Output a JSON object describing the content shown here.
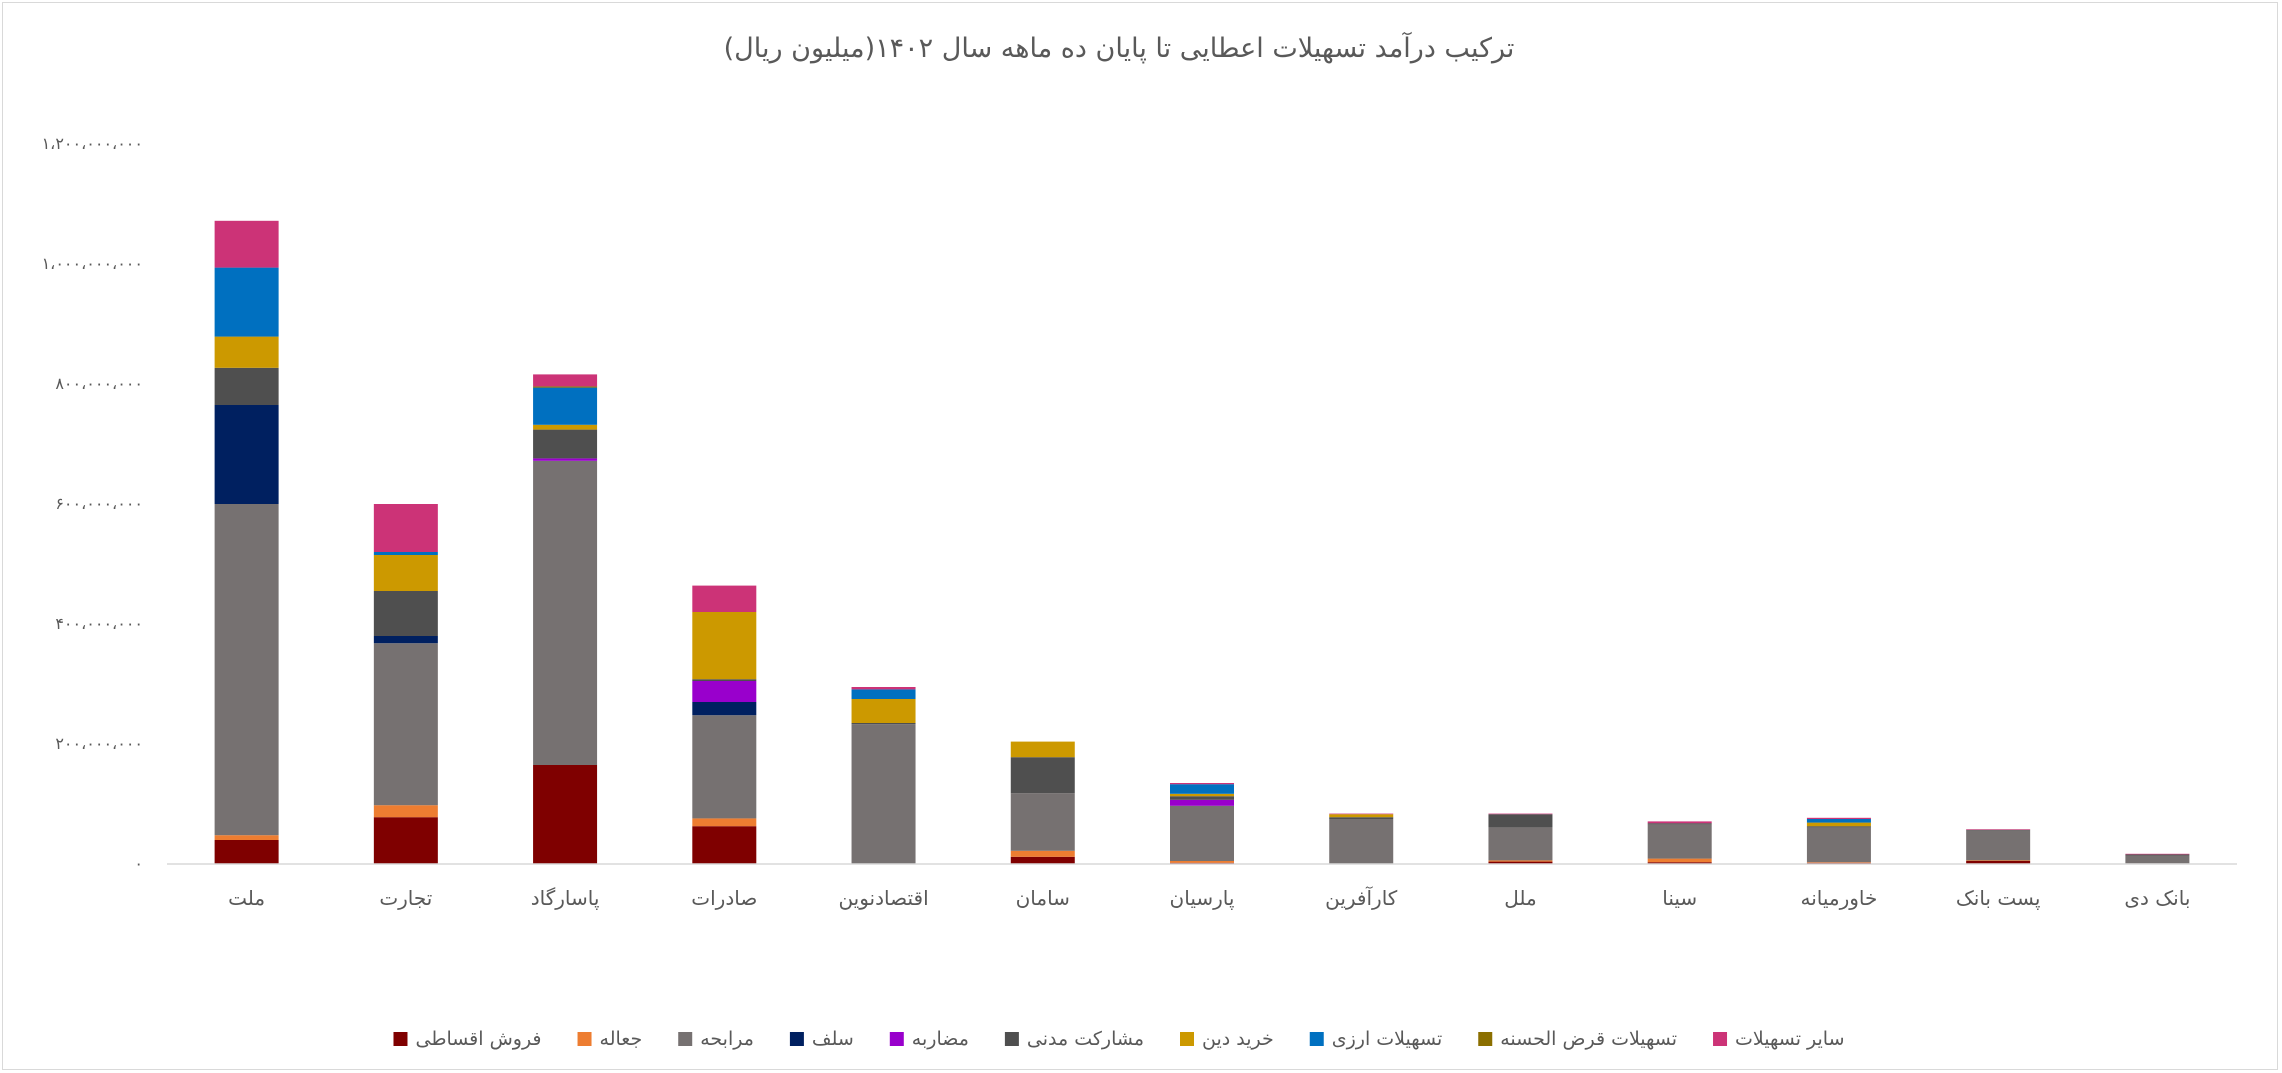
{
  "chart_data": {
    "type": "bar",
    "stacked": true,
    "title": "ترکیب درآمد تسهیلات اعطایی تا پایان ده ماهه سال ۱۴۰۲(میلیون ریال)",
    "xlabel": "",
    "ylabel": "",
    "ylim": [
      0,
      1200000000
    ],
    "yticks": [
      0,
      200000000,
      400000000,
      600000000,
      800000000,
      1000000000,
      1200000000
    ],
    "ytick_labels": [
      "۰",
      "۲۰۰،۰۰۰،۰۰۰",
      "۴۰۰،۰۰۰،۰۰۰",
      "۶۰۰،۰۰۰،۰۰۰",
      "۸۰۰،۰۰۰،۰۰۰",
      "۱،۰۰۰،۰۰۰،۰۰۰",
      "۱،۲۰۰،۰۰۰،۰۰۰"
    ],
    "grid": false,
    "legend_position": "bottom",
    "categories": [
      "ملت",
      "تجارت",
      "پاسارگاد",
      "صادرات",
      "اقتصادنوین",
      "سامان",
      "پارسیان",
      "کارآفرین",
      "ملل",
      "سینا",
      "خاورمیانه",
      "پست بانک",
      "بانک دی"
    ],
    "series": [
      {
        "name": "فروش اقساطی",
        "color": "#7F0000",
        "values": [
          40000000,
          78000000,
          165000000,
          63000000,
          0,
          12000000,
          2000000,
          0,
          4000000,
          3000000,
          2000000,
          5000000,
          1000000
        ]
      },
      {
        "name": "جعاله",
        "color": "#ED7D31",
        "values": [
          8000000,
          20000000,
          0,
          13000000,
          0,
          10000000,
          3000000,
          0,
          2000000,
          6000000,
          1000000,
          1000000,
          0
        ]
      },
      {
        "name": "مرابحه",
        "color": "#767171",
        "values": [
          552000000,
          270000000,
          507000000,
          172000000,
          233000000,
          96000000,
          92000000,
          75000000,
          55000000,
          57000000,
          58000000,
          50000000,
          13000000
        ]
      },
      {
        "name": "سلف",
        "color": "#002060",
        "values": [
          165000000,
          12000000,
          0,
          22000000,
          0,
          0,
          0,
          0,
          0,
          0,
          0,
          0,
          0
        ]
      },
      {
        "name": "مضاربه",
        "color": "#9900CC",
        "values": [
          0,
          0,
          4000000,
          35000000,
          0,
          0,
          10000000,
          0,
          0,
          0,
          0,
          0,
          0
        ]
      },
      {
        "name": "مشارکت مدنی",
        "color": "#4F4F4F",
        "values": [
          62000000,
          75000000,
          48000000,
          3000000,
          2000000,
          60000000,
          6000000,
          3000000,
          22000000,
          2000000,
          2000000,
          1000000,
          2000000
        ]
      },
      {
        "name": "خرید دین",
        "color": "#CC9900",
        "values": [
          52000000,
          60000000,
          8000000,
          112000000,
          40000000,
          26000000,
          4000000,
          5000000,
          0,
          0,
          6000000,
          0,
          0
        ]
      },
      {
        "name": "تسهیلات ارزی",
        "color": "#0070C0",
        "values": [
          115000000,
          5000000,
          62000000,
          0,
          16000000,
          0,
          16000000,
          0,
          0,
          0,
          6000000,
          0,
          0
        ]
      },
      {
        "name": "تسهیلات قرض الحسنه",
        "color": "#8B6F00",
        "values": [
          0,
          0,
          2000000,
          0,
          0,
          0,
          0,
          0,
          0,
          0,
          0,
          0,
          0
        ]
      },
      {
        "name": "سایر تسهیلات",
        "color": "#CC3377",
        "values": [
          78000000,
          80000000,
          20000000,
          44000000,
          4000000,
          0,
          2000000,
          1000000,
          1000000,
          3000000,
          2000000,
          1000000,
          1000000
        ]
      }
    ]
  }
}
